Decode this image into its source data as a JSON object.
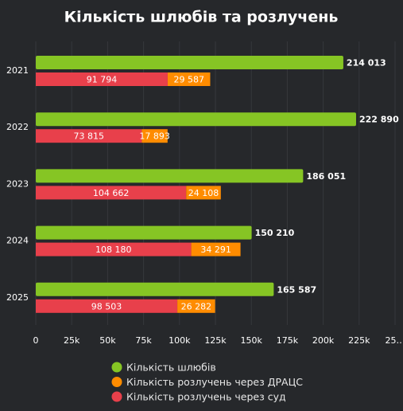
{
  "chart_data": {
    "type": "bar",
    "orientation": "horizontal",
    "title": "Кількість шлюбів та розлучень",
    "categories": [
      "2021",
      "2022",
      "2023",
      "2024",
      "2025"
    ],
    "series": [
      {
        "name": "Кількість шлюбів",
        "color": "#86c524",
        "values": [
          214013,
          222890,
          186051,
          150210,
          165587
        ],
        "value_labels": [
          "214 013",
          "222 890",
          "186 051",
          "150 210",
          "165 587"
        ]
      },
      {
        "name": "Кількість розлучень через ДРАЦС",
        "color": "#ff8c00",
        "values": [
          29587,
          17893,
          24108,
          34291,
          26282
        ],
        "value_labels": [
          "29 587",
          "17 893",
          "24 108",
          "34 291",
          "26 282"
        ]
      },
      {
        "name": "Кількість розлучень через суд",
        "color": "#e8404b",
        "values": [
          91794,
          73815,
          104662,
          108180,
          98503
        ],
        "value_labels": [
          "91 794",
          "73 815",
          "104 662",
          "108 180",
          "98 503"
        ]
      }
    ],
    "xlim": [
      0,
      250000
    ],
    "xticks": [
      0,
      {
        "value": 25000,
        "label": "25k"
      },
      {
        "value": 50000,
        "label": "50k"
      },
      {
        "value": 75000,
        "label": "75k"
      },
      {
        "value": 100000,
        "label": "100k"
      },
      {
        "value": 125000,
        "label": "125k"
      },
      {
        "value": 150000,
        "label": "150k"
      },
      {
        "value": 175000,
        "label": "175k"
      },
      {
        "value": 200000,
        "label": "200k"
      },
      {
        "value": 225000,
        "label": "225k"
      },
      {
        "value": 250000,
        "label": "25…"
      }
    ],
    "grid": true,
    "legend": "bottom"
  }
}
